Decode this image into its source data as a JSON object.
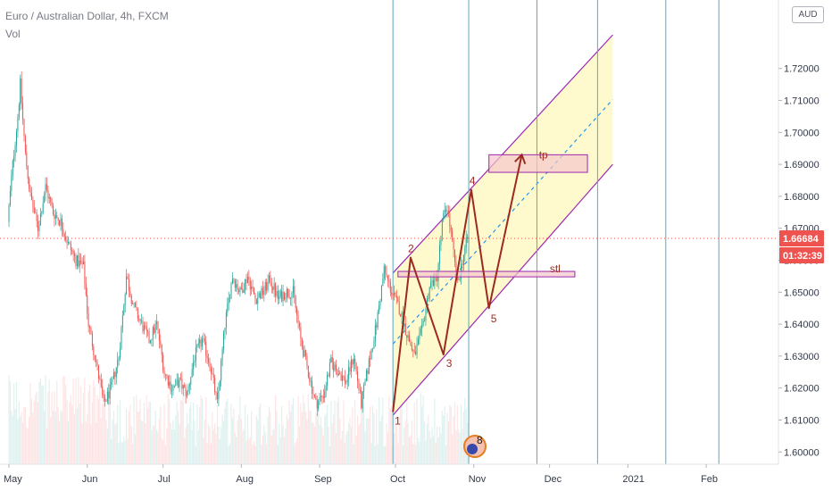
{
  "header": {
    "symbol_line": "Euro / Australian Dollar, 4h, FXCM",
    "indicator": "Vol",
    "currency": "AUD"
  },
  "price_tags": {
    "last_price": "1.66684",
    "countdown": "01:32:39",
    "color": "#ef5350"
  },
  "colors": {
    "up": "#26a69a",
    "down": "#ef5350",
    "channel": "#9c27b0",
    "channel_fill": "#fff9c4",
    "midline": "#2196f3",
    "wave": "#9c2a1e",
    "vertical_lines": "#5ba7c7"
  },
  "annotations": {
    "tp_label": "tp",
    "stl_label": "stl",
    "wave_labels": [
      "1",
      "2",
      "3",
      "4",
      "5"
    ],
    "logo_badge": "8"
  },
  "chart_data": {
    "type": "candlestick",
    "title": "Euro / Australian Dollar, 4h, FXCM",
    "xlabel": "",
    "ylabel": "",
    "ylim": [
      1.595,
      1.725
    ],
    "y_ticks": [
      "1.60000",
      "1.61000",
      "1.62000",
      "1.63000",
      "1.64000",
      "1.65000",
      "1.66000",
      "1.67000",
      "1.68000",
      "1.69000",
      "1.70000",
      "1.71000",
      "1.72000"
    ],
    "x_ticks": [
      "May",
      "Jun",
      "Jul",
      "Aug",
      "Sep",
      "Oct",
      "Nov",
      "Dec",
      "2021",
      "Feb"
    ],
    "x_tick_days": [
      0,
      31,
      61,
      92,
      123,
      153,
      184,
      214,
      245,
      276
    ],
    "last_price": 1.66684,
    "last_day": 182,
    "price_path": [
      [
        0,
        1.672
      ],
      [
        2,
        1.69
      ],
      [
        4,
        1.705
      ],
      [
        5,
        1.715
      ],
      [
        7,
        1.693
      ],
      [
        9,
        1.68
      ],
      [
        12,
        1.67
      ],
      [
        15,
        1.683
      ],
      [
        18,
        1.675
      ],
      [
        21,
        1.672
      ],
      [
        24,
        1.665
      ],
      [
        27,
        1.66
      ],
      [
        30,
        1.658
      ],
      [
        32,
        1.64
      ],
      [
        35,
        1.628
      ],
      [
        38,
        1.615
      ],
      [
        41,
        1.62
      ],
      [
        44,
        1.63
      ],
      [
        47,
        1.655
      ],
      [
        50,
        1.645
      ],
      [
        53,
        1.64
      ],
      [
        56,
        1.635
      ],
      [
        59,
        1.64
      ],
      [
        62,
        1.625
      ],
      [
        65,
        1.62
      ],
      [
        68,
        1.622
      ],
      [
        71,
        1.618
      ],
      [
        74,
        1.63
      ],
      [
        77,
        1.635
      ],
      [
        80,
        1.628
      ],
      [
        83,
        1.615
      ],
      [
        86,
        1.64
      ],
      [
        89,
        1.655
      ],
      [
        92,
        1.65
      ],
      [
        95,
        1.655
      ],
      [
        98,
        1.648
      ],
      [
        101,
        1.65
      ],
      [
        104,
        1.654
      ],
      [
        107,
        1.648
      ],
      [
        110,
        1.65
      ],
      [
        113,
        1.65
      ],
      [
        116,
        1.635
      ],
      [
        119,
        1.625
      ],
      [
        122,
        1.615
      ],
      [
        125,
        1.618
      ],
      [
        128,
        1.628
      ],
      [
        131,
        1.625
      ],
      [
        134,
        1.622
      ],
      [
        137,
        1.63
      ],
      [
        140,
        1.615
      ],
      [
        143,
        1.628
      ],
      [
        146,
        1.64
      ],
      [
        149,
        1.657
      ],
      [
        152,
        1.65
      ],
      [
        155,
        1.645
      ],
      [
        158,
        1.637
      ],
      [
        161,
        1.63
      ],
      [
        164,
        1.638
      ],
      [
        167,
        1.652
      ],
      [
        170,
        1.655
      ],
      [
        172,
        1.672
      ],
      [
        174,
        1.677
      ],
      [
        176,
        1.665
      ],
      [
        178,
        1.652
      ],
      [
        180,
        1.66
      ],
      [
        182,
        1.667
      ]
    ],
    "volume_note": "Vol",
    "channel": {
      "upper": [
        [
          152,
          1.656
        ],
        [
          239,
          1.7305
        ]
      ],
      "lower": [
        [
          152,
          1.6115
        ],
        [
          239,
          1.69
        ]
      ],
      "mid": [
        [
          152,
          1.6338
        ],
        [
          239,
          1.7103
        ]
      ],
      "end_day": 239
    },
    "wave": {
      "points": [
        [
          152,
          1.6125
        ],
        [
          159,
          1.6608
        ],
        [
          172,
          1.6305
        ],
        [
          183,
          1.682
        ],
        [
          190,
          1.645
        ],
        [
          203,
          1.693
        ]
      ],
      "labels": [
        "1",
        "2",
        "3",
        "4",
        "5"
      ]
    },
    "tp_zone": {
      "label": "tp",
      "day_from": 190,
      "day_to": 229,
      "price_low": 1.6875,
      "price_high": 1.693
    },
    "stl_zone": {
      "label": "stl",
      "day_from": 154,
      "day_to": 224,
      "price_low": 1.6548,
      "price_high": 1.6565
    },
    "vertical_lines_days": [
      152,
      182,
      209,
      233,
      260,
      281
    ]
  }
}
